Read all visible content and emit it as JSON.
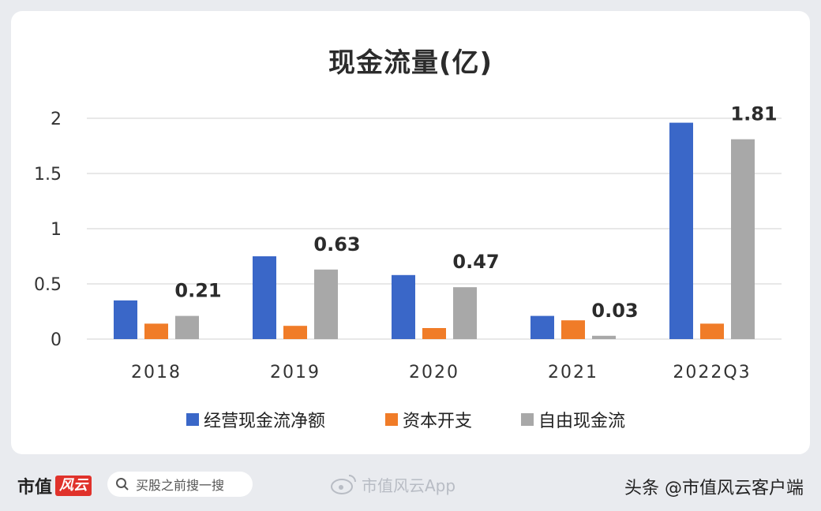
{
  "chart_data": {
    "type": "bar",
    "title": "现金流量(亿)",
    "categories": [
      "2018",
      "2019",
      "2020",
      "2021",
      "2022Q3"
    ],
    "series": [
      {
        "name": "经营现金流净额",
        "color": "#3a67c8",
        "values": [
          0.35,
          0.75,
          0.58,
          0.21,
          1.96
        ]
      },
      {
        "name": "资本开支",
        "color": "#f07c28",
        "values": [
          0.14,
          0.12,
          0.1,
          0.17,
          0.14
        ]
      },
      {
        "name": "自由现金流",
        "color": "#a8a8a8",
        "values": [
          0.21,
          0.63,
          0.47,
          0.03,
          1.81
        ]
      }
    ],
    "data_labels": {
      "series": "自由现金流",
      "labels": [
        "0.21",
        "0.63",
        "0.47",
        "0.03",
        "1.81"
      ]
    },
    "yticks": [
      "0",
      "0.5",
      "1",
      "1.5",
      "2"
    ],
    "ylim": [
      0,
      2
    ],
    "grid": true,
    "legend": "bottom"
  },
  "footer": {
    "brand": "市值",
    "brand_logo": "风云",
    "search_placeholder": "买股之前搜一搜",
    "watermark": "市值风云App",
    "source": "头条 @市值风云客户端"
  }
}
